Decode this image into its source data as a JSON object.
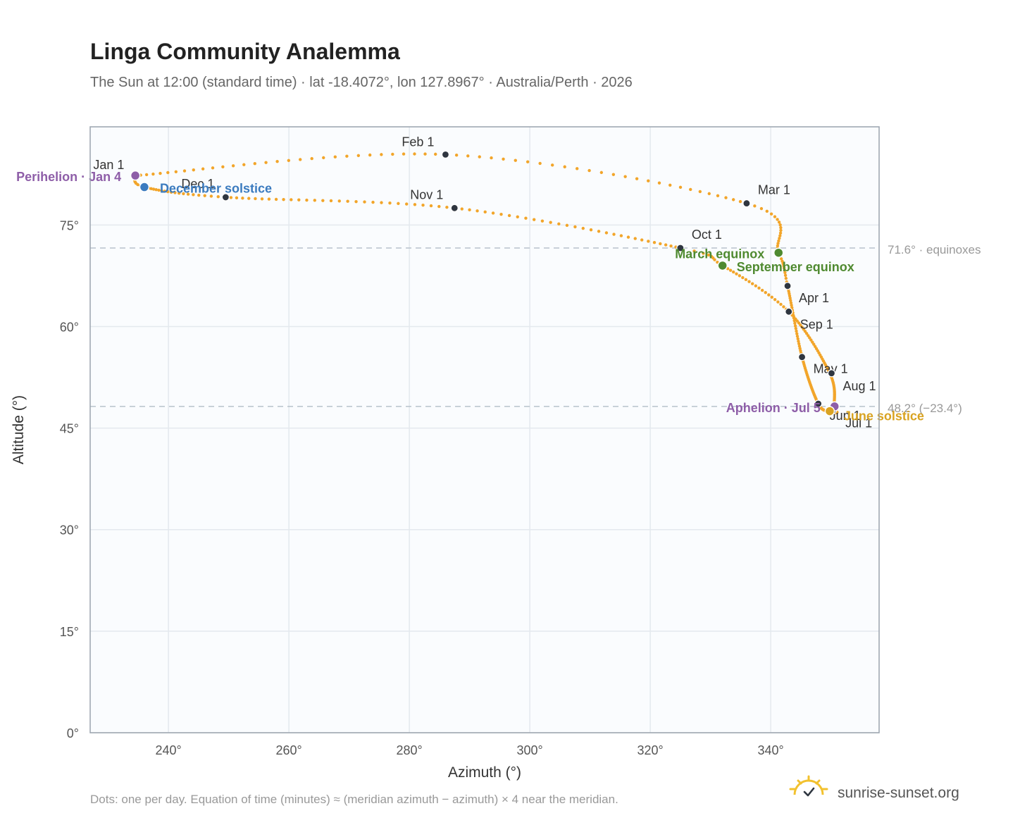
{
  "header": {
    "title": "Linga Community Analemma",
    "subtitle": "The Sun at 12:00 (standard time) · lat -18.4072°, lon 127.8967° · Australia/Perth · 2026"
  },
  "footer": {
    "note": "Dots: one per day. Equation of time (minutes) ≈ (meridian azimuth − azimuth) × 4 near the meridian.",
    "brand": "sunrise-sunset.org"
  },
  "icons": {
    "brand_logo": "sun-check-icon"
  },
  "colors": {
    "path": "#f2a52a",
    "month_marker": "#2f3640",
    "perihelion": "#8e5ea8",
    "december_solstice": "#3b7bbf",
    "equinox": "#4f8a30",
    "june_solstice": "#d9a322",
    "aphelion": "#8e5ea8",
    "plot_bg": "#fafcfe",
    "grid": "#e4e9ee",
    "ref_line": "#b8c2cc"
  },
  "chart_data": {
    "type": "scatter",
    "title": "Linga Community Analemma",
    "xlabel": "Azimuth (°)",
    "ylabel": "Altitude (°)",
    "xlim": [
      227,
      358
    ],
    "ylim": [
      0,
      89.5
    ],
    "x_ticks": [
      240,
      260,
      280,
      300,
      320,
      340
    ],
    "x_tick_labels": [
      "240°",
      "260°",
      "280°",
      "300°",
      "320°",
      "340°"
    ],
    "y_ticks": [
      0,
      15,
      30,
      45,
      60,
      75
    ],
    "y_tick_labels": [
      "0°",
      "15°",
      "30°",
      "45°",
      "60°",
      "75°"
    ],
    "grid": true,
    "reference_lines": [
      {
        "y": 71.6,
        "label": "71.6° · equinoxes"
      },
      {
        "y": 48.2,
        "label": "48.2° (−23.4°)"
      }
    ],
    "daily_path": [
      {
        "doy": 1,
        "az": 234.5,
        "alt": 82.3
      },
      {
        "doy": 32,
        "az": 286.0,
        "alt": 85.4
      },
      {
        "doy": 60,
        "az": 336.0,
        "alt": 78.2
      },
      {
        "doy": 79,
        "az": 341.3,
        "alt": 70.9
      },
      {
        "doy": 91,
        "az": 342.8,
        "alt": 66.0
      },
      {
        "doy": 121,
        "az": 345.2,
        "alt": 55.5
      },
      {
        "doy": 152,
        "az": 347.9,
        "alt": 48.6
      },
      {
        "doy": 172,
        "az": 349.8,
        "alt": 47.5
      },
      {
        "doy": 182,
        "az": 351.0,
        "alt": 47.3
      },
      {
        "doy": 186,
        "az": 350.6,
        "alt": 48.2
      },
      {
        "doy": 213,
        "az": 349.8,
        "alt": 53.1
      },
      {
        "doy": 244,
        "az": 343.0,
        "alt": 62.2
      },
      {
        "doy": 266,
        "az": 332.0,
        "alt": 69.0
      },
      {
        "doy": 274,
        "az": 325.0,
        "alt": 71.6
      },
      {
        "doy": 305,
        "az": 287.5,
        "alt": 77.5
      },
      {
        "doy": 335,
        "az": 249.5,
        "alt": 79.1
      },
      {
        "doy": 355,
        "az": 236.0,
        "alt": 80.6
      },
      {
        "doy": 365,
        "az": 234.5,
        "alt": 82.3
      }
    ],
    "month_markers": [
      {
        "label": "Jan 1",
        "az": 234.3,
        "alt": 82.4,
        "anchor": "end",
        "dx": -14,
        "dy": -8
      },
      {
        "label": "Feb 1",
        "az": 286.0,
        "alt": 85.4,
        "anchor": "end",
        "dx": -16,
        "dy": -12
      },
      {
        "label": "Mar 1",
        "az": 336.0,
        "alt": 78.2,
        "anchor": "start",
        "dx": 16,
        "dy": -13
      },
      {
        "label": "Apr 1",
        "az": 342.8,
        "alt": 66.0,
        "anchor": "start",
        "dx": 16,
        "dy": 23
      },
      {
        "label": "May 1",
        "az": 345.2,
        "alt": 55.5,
        "anchor": "start",
        "dx": 16,
        "dy": 23
      },
      {
        "label": "Jun 1",
        "az": 347.9,
        "alt": 48.6,
        "anchor": "start",
        "dx": 16,
        "dy": 23
      },
      {
        "label": "Jul 1",
        "az": 350.3,
        "alt": 47.6,
        "anchor": "start",
        "dx": 18,
        "dy": 24
      },
      {
        "label": "Aug 1",
        "az": 350.1,
        "alt": 53.1,
        "anchor": "start",
        "dx": 16,
        "dy": 24
      },
      {
        "label": "Sep 1",
        "az": 343.0,
        "alt": 62.2,
        "anchor": "start",
        "dx": 16,
        "dy": 24
      },
      {
        "label": "Oct 1",
        "az": 325.0,
        "alt": 71.6,
        "anchor": "start",
        "dx": 16,
        "dy": -13
      },
      {
        "label": "Nov 1",
        "az": 287.5,
        "alt": 77.5,
        "anchor": "end",
        "dx": -16,
        "dy": -13
      },
      {
        "label": "Dec 1",
        "az": 249.5,
        "alt": 79.1,
        "anchor": "end",
        "dx": -16,
        "dy": -13
      }
    ],
    "events": [
      {
        "label": "Perihelion · Jan 4",
        "az": 234.5,
        "alt": 82.3,
        "color_key": "perihelion",
        "anchor": "end",
        "dx": -20,
        "dy": 8
      },
      {
        "label": "December solstice",
        "az": 236.0,
        "alt": 80.6,
        "color_key": "december_solstice",
        "anchor": "start",
        "dx": 22,
        "dy": 8
      },
      {
        "label": "March equinox",
        "az": 341.3,
        "alt": 70.9,
        "color_key": "equinox",
        "anchor": "end",
        "dx": -20,
        "dy": 8
      },
      {
        "label": "September equinox",
        "az": 332.0,
        "alt": 69.0,
        "color_key": "equinox",
        "anchor": "start",
        "dx": 20,
        "dy": 8
      },
      {
        "label": "Aphelion · Jul 5",
        "az": 350.6,
        "alt": 48.2,
        "color_key": "aphelion",
        "anchor": "end",
        "dx": -20,
        "dy": 8
      },
      {
        "label": "June solstice",
        "az": 349.8,
        "alt": 47.5,
        "color_key": "june_solstice",
        "anchor": "start",
        "dx": 20,
        "dy": 13
      }
    ]
  }
}
